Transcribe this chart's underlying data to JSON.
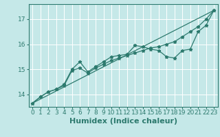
{
  "xlabel": "Humidex (Indice chaleur)",
  "bg_color": "#c5e8e8",
  "grid_color": "#ffffff",
  "line_color": "#2d7a6e",
  "xlim": [
    -0.5,
    23.5
  ],
  "ylim": [
    13.5,
    17.6
  ],
  "yticks": [
    14,
    15,
    16,
    17
  ],
  "xticks": [
    0,
    1,
    2,
    3,
    4,
    5,
    6,
    7,
    8,
    9,
    10,
    11,
    12,
    13,
    14,
    15,
    16,
    17,
    18,
    19,
    20,
    21,
    22,
    23
  ],
  "line1_x": [
    0,
    1,
    2,
    3,
    4,
    5,
    6,
    7,
    8,
    9,
    10,
    11,
    12,
    13,
    14,
    15,
    16,
    17,
    18,
    19,
    20,
    21,
    22,
    23
  ],
  "line1_y": [
    13.65,
    13.9,
    14.1,
    14.2,
    14.35,
    14.95,
    15.05,
    14.85,
    15.05,
    15.2,
    15.35,
    15.45,
    15.55,
    15.65,
    15.75,
    15.85,
    15.9,
    16.0,
    16.1,
    16.3,
    16.5,
    16.7,
    17.0,
    17.35
  ],
  "line2_x": [
    0,
    1,
    2,
    3,
    4,
    5,
    6,
    7,
    8,
    9,
    10,
    11,
    12,
    13,
    14,
    15,
    16,
    17,
    18,
    19,
    20,
    21,
    22,
    23
  ],
  "line2_y": [
    13.65,
    13.9,
    14.1,
    14.2,
    14.4,
    15.0,
    15.3,
    14.9,
    15.1,
    15.3,
    15.5,
    15.55,
    15.6,
    15.95,
    15.9,
    15.8,
    15.75,
    15.5,
    15.45,
    15.75,
    15.8,
    16.5,
    16.75,
    17.35
  ],
  "line3_x": [
    0,
    23
  ],
  "line3_y": [
    13.65,
    17.35
  ],
  "tick_fontsize": 6.5,
  "xlabel_fontsize": 8
}
